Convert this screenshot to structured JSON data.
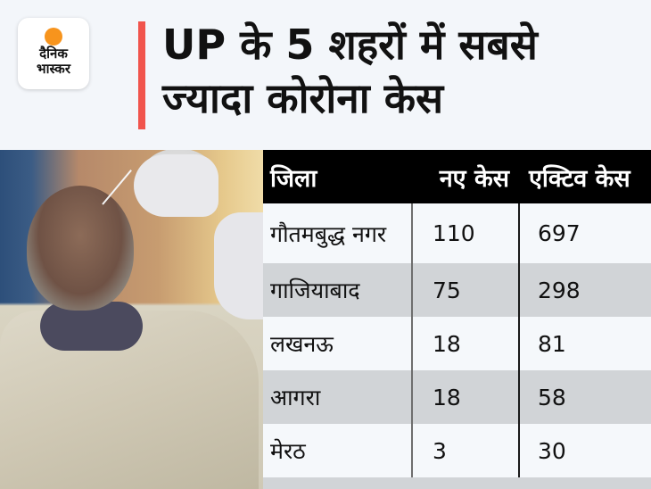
{
  "brand": {
    "logo_line1": "दैनिक",
    "logo_line2": "भास्कर",
    "logo_sun_color": "#f7941d",
    "accent_color": "#f1544c"
  },
  "header": {
    "title_line1": "UP के 5 शहरों में सबसे",
    "title_line2": "ज्यादा कोरोना केस"
  },
  "table": {
    "columns": [
      "जिला",
      "नए केस",
      "एक्टिव केस"
    ],
    "rows": [
      {
        "district": "गौतमबुद्ध नगर",
        "new_cases": "110",
        "active_cases": "697"
      },
      {
        "district": "गाजियाबाद",
        "new_cases": "75",
        "active_cases": "298"
      },
      {
        "district": "लखनऊ",
        "new_cases": "18",
        "active_cases": "81"
      },
      {
        "district": "आगरा",
        "new_cases": "18",
        "active_cases": "58"
      },
      {
        "district": "मेरठ",
        "new_cases": "3",
        "active_cases": "30"
      }
    ]
  },
  "image": {
    "description": "Health worker in white PPE glove taking a nasal swab from a man in a light shirt and dark scarf"
  }
}
